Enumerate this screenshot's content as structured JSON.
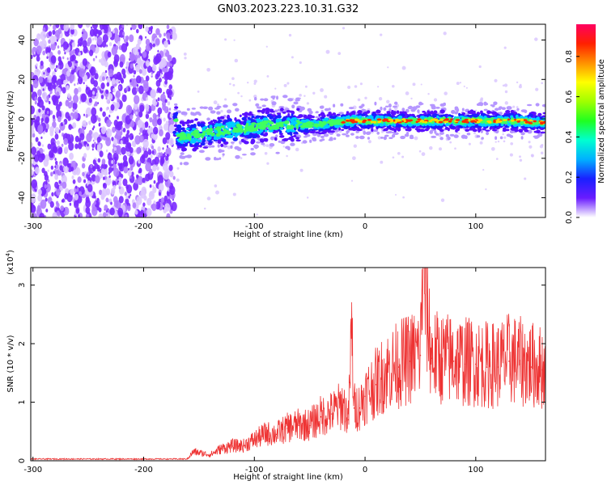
{
  "title": "GN03.2023.223.10.31.G32",
  "chart_data": [
    {
      "type": "heatmap",
      "xlabel": "Height of straight line (km)",
      "ylabel": "Frequency (Hz)",
      "xlim": [
        -302,
        163
      ],
      "ylim": [
        -50,
        48
      ],
      "xticks": [
        -300,
        -200,
        -100,
        0,
        100
      ],
      "yticks": [
        -40,
        -20,
        0,
        20,
        40
      ],
      "colorbar": {
        "label": "Normalized spectral amplitude",
        "range": [
          0,
          0.96
        ],
        "ticks": [
          "0.0",
          "0.2",
          "0.4",
          "0.6",
          "0.8"
        ],
        "colors": [
          "#ffffff",
          "#6a1cff",
          "#1a20ff",
          "#00b0ff",
          "#00ffd0",
          "#20ff20",
          "#a0ff00",
          "#ffff00",
          "#ff9000",
          "#ff2000",
          "#ff0060"
        ]
      },
      "noise_region_x": [
        -302,
        -172
      ],
      "ridge": [
        {
          "x": -170,
          "y": -9
        },
        {
          "x": -150,
          "y": -8
        },
        {
          "x": -130,
          "y": -6
        },
        {
          "x": -110,
          "y": -5
        },
        {
          "x": -90,
          "y": -3
        },
        {
          "x": -70,
          "y": -3
        },
        {
          "x": -50,
          "y": -3
        },
        {
          "x": -30,
          "y": -2
        },
        {
          "x": -10,
          "y": -1
        },
        {
          "x": 0,
          "y": -1
        },
        {
          "x": 20,
          "y": -1
        },
        {
          "x": 40,
          "y": -1
        },
        {
          "x": 60,
          "y": -1
        },
        {
          "x": 80,
          "y": -1
        },
        {
          "x": 100,
          "y": -1
        },
        {
          "x": 120,
          "y": -1
        },
        {
          "x": 140,
          "y": -1
        },
        {
          "x": 160,
          "y": -2
        }
      ]
    },
    {
      "type": "line",
      "xlabel": "Height of straight line (km)",
      "ylabel": "SNR (10 * v/v)",
      "scale_label": "(x10",
      "scale_exp": "4",
      "scale_close": ")",
      "xlim": [
        -302,
        163
      ],
      "ylim": [
        0,
        3.3
      ],
      "xticks": [
        -300,
        -200,
        -100,
        0,
        100
      ],
      "yticks": [
        0,
        1,
        2,
        3
      ],
      "color": "#ee3333",
      "series": [
        {
          "x": [
            -302,
            -200,
            -160,
            -155,
            -140,
            -130,
            -120,
            -110,
            -100,
            -90,
            -80,
            -70,
            -60,
            -50,
            -40,
            -30,
            -20,
            -15,
            -12,
            -10,
            -5,
            0,
            10,
            20,
            30,
            40,
            50,
            52,
            60,
            70,
            80,
            90,
            100,
            110,
            120,
            130,
            140,
            150,
            160,
            163
          ],
          "y": [
            0.02,
            0.03,
            0.05,
            0.15,
            0.1,
            0.2,
            0.25,
            0.25,
            0.35,
            0.45,
            0.45,
            0.55,
            0.6,
            0.6,
            0.75,
            0.8,
            0.95,
            0.7,
            2.2,
            0.9,
            0.9,
            1.1,
            1.3,
            1.5,
            1.6,
            1.7,
            1.8,
            3.3,
            1.75,
            1.7,
            1.7,
            1.65,
            1.65,
            1.6,
            1.6,
            1.7,
            1.65,
            1.6,
            1.55,
            1.5
          ]
        }
      ]
    }
  ]
}
